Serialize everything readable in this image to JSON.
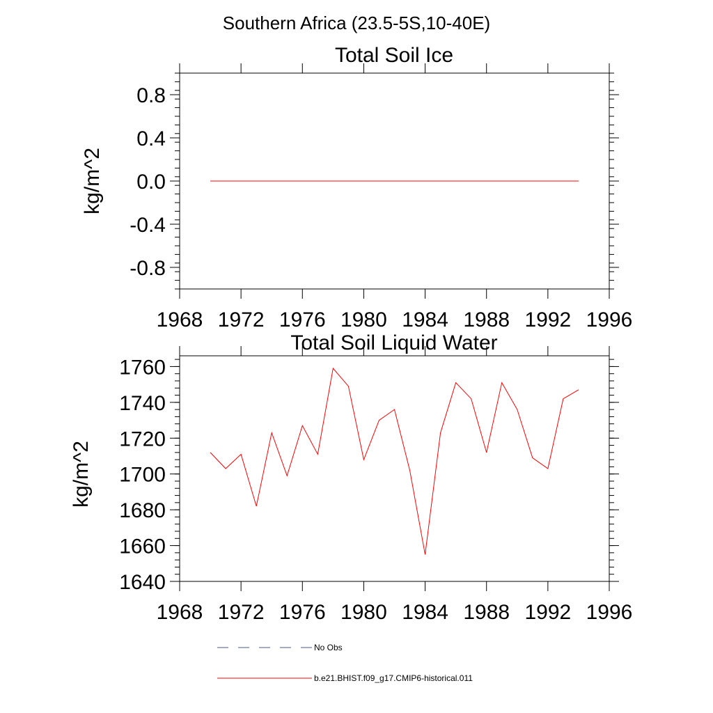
{
  "figure": {
    "suptitle": "Southern Africa (23.5-5S,10-40E)"
  },
  "chart_data": [
    {
      "type": "line",
      "title": "Total Soil Ice",
      "xlabel": "",
      "ylabel": "kg/m^2",
      "xlim": [
        1968,
        1996
      ],
      "ylim": [
        -1.0,
        1.0
      ],
      "xticks": [
        1968,
        1972,
        1976,
        1980,
        1984,
        1988,
        1992,
        1996
      ],
      "yticks": [
        -0.8,
        -0.4,
        0.0,
        0.4,
        0.8
      ],
      "ytick_labels": [
        "-0.8",
        "-0.4",
        "0.0",
        "0.4",
        "0.8"
      ],
      "series": [
        {
          "name": "b.e21.BHIST.f09_g17.CMIP6-historical.011",
          "color": "#ff0000",
          "x": [
            1970,
            1971,
            1972,
            1973,
            1974,
            1975,
            1976,
            1977,
            1978,
            1979,
            1980,
            1981,
            1982,
            1983,
            1984,
            1985,
            1986,
            1987,
            1988,
            1989,
            1990,
            1991,
            1992,
            1993,
            1994
          ],
          "values": [
            0,
            0,
            0,
            0,
            0,
            0,
            0,
            0,
            0,
            0,
            0,
            0,
            0,
            0,
            0,
            0,
            0,
            0,
            0,
            0,
            0,
            0,
            0,
            0,
            0
          ]
        }
      ]
    },
    {
      "type": "line",
      "title": "Total Soil Liquid Water",
      "xlabel": "",
      "ylabel": "kg/m^2",
      "xlim": [
        1968,
        1996
      ],
      "ylim": [
        1640,
        1766
      ],
      "xticks": [
        1968,
        1972,
        1976,
        1980,
        1984,
        1988,
        1992,
        1996
      ],
      "yticks": [
        1640,
        1660,
        1680,
        1700,
        1720,
        1740,
        1760
      ],
      "ytick_labels": [
        "1640",
        "1660",
        "1680",
        "1700",
        "1720",
        "1740",
        "1760"
      ],
      "series": [
        {
          "name": "b.e21.BHIST.f09_g17.CMIP6-historical.011",
          "color": "#ff0000",
          "x": [
            1970,
            1971,
            1972,
            1973,
            1974,
            1975,
            1976,
            1977,
            1978,
            1979,
            1980,
            1981,
            1982,
            1983,
            1984,
            1985,
            1986,
            1987,
            1988,
            1989,
            1990,
            1991,
            1992,
            1993,
            1994
          ],
          "values": [
            1712,
            1703,
            1711,
            1682,
            1723,
            1699,
            1727,
            1711,
            1759,
            1749,
            1708,
            1730,
            1736,
            1702,
            1655,
            1723,
            1751,
            1742,
            1712,
            1751,
            1736,
            1709,
            1703,
            1742,
            1747
          ]
        }
      ]
    }
  ],
  "legend": {
    "placement": "bottom",
    "entries": [
      {
        "label": "No Obs",
        "style": "dashed",
        "color": "#4a5a8a"
      },
      {
        "label": "b.e21.BHIST.f09_g17.CMIP6-historical.011",
        "style": "solid",
        "color": "#ff0000"
      }
    ]
  }
}
